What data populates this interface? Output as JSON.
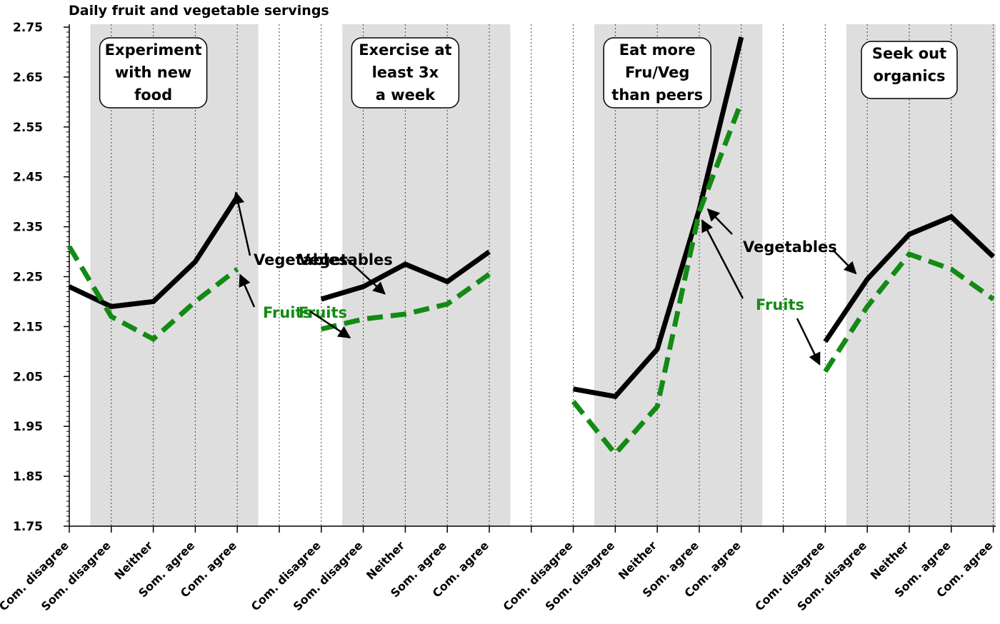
{
  "chart_data": {
    "type": "line",
    "title": "Daily fruit and vegetable servings",
    "xlabel": "",
    "ylabel": "",
    "ylim": [
      1.75,
      2.75
    ],
    "yticks": [
      "1.75",
      "1.85",
      "1.95",
      "2.05",
      "2.15",
      "2.25",
      "2.35",
      "2.45",
      "2.55",
      "2.65",
      "2.75"
    ],
    "categories": [
      "Com. disagree",
      "Som. disagree",
      "Neither",
      "Som. agree",
      "Com. agree"
    ],
    "grid": "vertical-dotted",
    "colors": {
      "vegetables": "#000000",
      "fruits": "#138a13",
      "panel_shade": "#dedede"
    },
    "panels": [
      {
        "title_lines": [
          "Experiment",
          "with new",
          "food"
        ],
        "series": [
          {
            "name": "Vegetables",
            "values": [
              2.23,
              2.19,
              2.2,
              2.28,
              2.41
            ]
          },
          {
            "name": "Fruits",
            "values": [
              2.31,
              2.17,
              2.125,
              2.2,
              2.265
            ]
          }
        ],
        "annotations": [
          {
            "text": "Vegetables",
            "series": "Vegetables"
          },
          {
            "text": "Fruits",
            "series": "Fruits"
          }
        ]
      },
      {
        "title_lines": [
          "Exercise at",
          "least 3x",
          "a week"
        ],
        "series": [
          {
            "name": "Vegetables",
            "values": [
              2.205,
              2.23,
              2.275,
              2.24,
              2.3
            ]
          },
          {
            "name": "Fruits",
            "values": [
              2.145,
              2.165,
              2.175,
              2.195,
              2.255
            ]
          }
        ],
        "annotations": [
          {
            "text": "Vegetables",
            "series": "Vegetables"
          },
          {
            "text": "Fruits",
            "series": "Fruits"
          }
        ]
      },
      {
        "title_lines": [
          "Eat more",
          "Fru/Veg",
          "than peers"
        ],
        "series": [
          {
            "name": "Vegetables",
            "values": [
              2.025,
              2.01,
              2.105,
              2.385,
              2.73
            ]
          },
          {
            "name": "Fruits",
            "values": [
              2.0,
              1.895,
              1.99,
              2.38,
              2.6
            ]
          }
        ],
        "annotations": [
          {
            "text": "Vegetables",
            "series": "Vegetables"
          },
          {
            "text": "Fruits",
            "series": "Fruits"
          }
        ]
      },
      {
        "title_lines": [
          "Seek out",
          "organics"
        ],
        "series": [
          {
            "name": "Vegetables",
            "values": [
              2.12,
              2.245,
              2.335,
              2.37,
              2.29
            ]
          },
          {
            "name": "Fruits",
            "values": [
              2.06,
              2.19,
              2.295,
              2.265,
              2.205
            ]
          }
        ],
        "annotations": [
          {
            "text": "Vegetables",
            "series": "Vegetables"
          },
          {
            "text": "Fruits",
            "series": "Fruits"
          }
        ]
      }
    ]
  }
}
